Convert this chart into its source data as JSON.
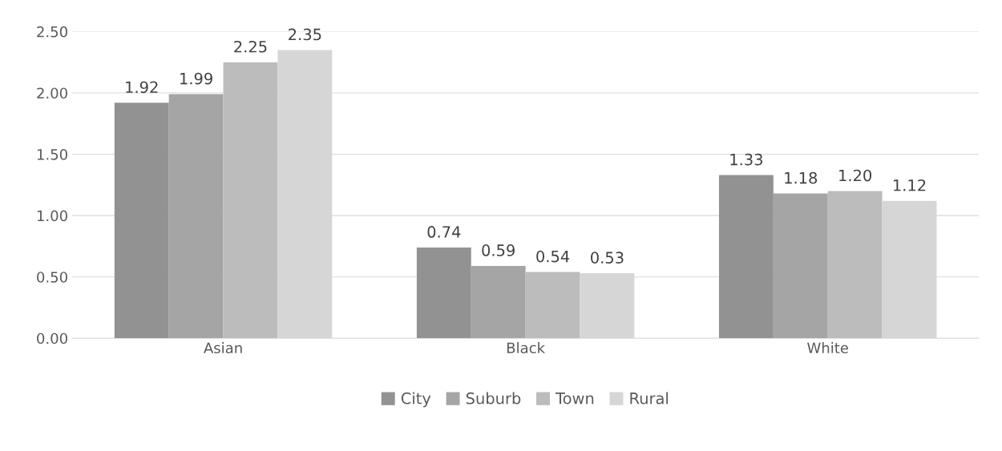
{
  "chart_data": {
    "type": "bar",
    "categories": [
      "Asian",
      "Black",
      "White"
    ],
    "series": [
      {
        "name": "City",
        "color": "#929292",
        "values": [
          1.92,
          0.74,
          1.33
        ],
        "value_labels": [
          "1.92",
          "0.74",
          "1.33"
        ]
      },
      {
        "name": "Suburb",
        "color": "#a5a5a5",
        "values": [
          1.99,
          0.59,
          1.18
        ],
        "value_labels": [
          "1.99",
          "0.59",
          "1.18"
        ]
      },
      {
        "name": "Town",
        "color": "#bcbcbc",
        "values": [
          2.25,
          0.54,
          1.2
        ],
        "value_labels": [
          "2.25",
          "0.54",
          "1.20"
        ]
      },
      {
        "name": "Rural",
        "color": "#d6d6d6",
        "values": [
          2.35,
          0.53,
          1.12
        ],
        "value_labels": [
          "2.35",
          "0.53",
          "1.12"
        ]
      }
    ],
    "ylim": [
      0,
      2.5
    ],
    "yticks": [
      {
        "value": 0,
        "label": "0.00"
      },
      {
        "value": 0.5,
        "label": "0.50"
      },
      {
        "value": 1,
        "label": "1.00"
      },
      {
        "value": 1.5,
        "label": "1.50"
      },
      {
        "value": 2,
        "label": "2.00"
      },
      {
        "value": 2.5,
        "label": "2.50"
      }
    ],
    "grid": "y",
    "legend": "bottom"
  }
}
